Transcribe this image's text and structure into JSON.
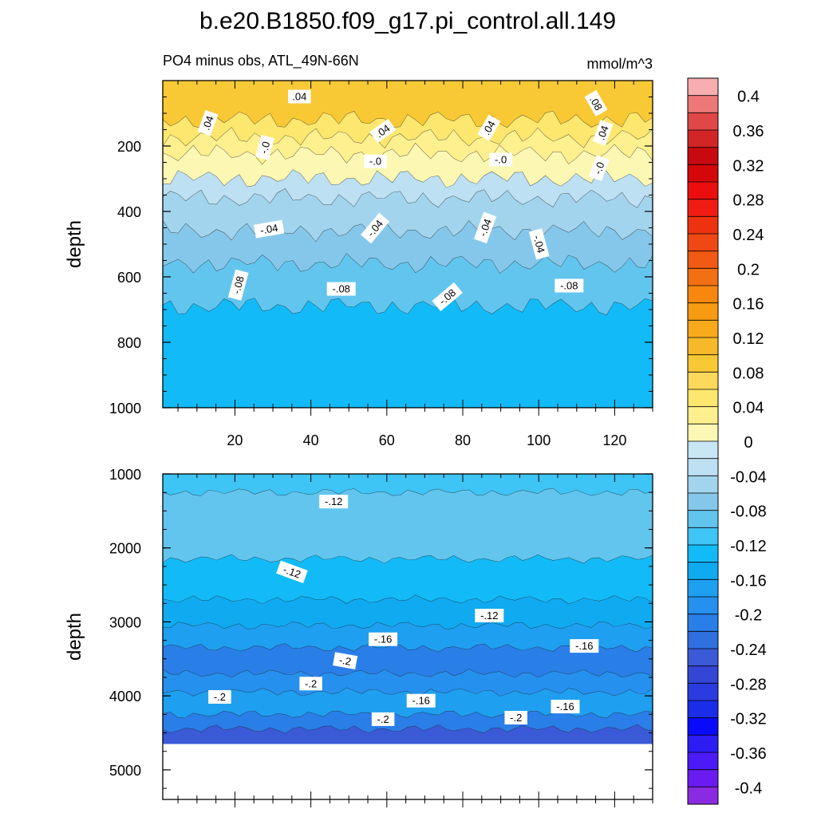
{
  "chart_data": {
    "title": "b.e20.B1850.f09_g17.pi_control.all.149",
    "type": "contour",
    "units": "mmol/m^3",
    "colorbar": {
      "levels": [
        -0.42,
        -0.4,
        -0.38,
        -0.36,
        -0.34,
        -0.32,
        -0.3,
        -0.28,
        -0.26,
        -0.24,
        -0.22,
        -0.2,
        -0.18,
        -0.16,
        -0.14,
        -0.12,
        -0.1,
        -0.08,
        -0.06,
        -0.04,
        -0.02,
        0,
        0.02,
        0.04,
        0.06,
        0.08,
        0.1,
        0.12,
        0.14,
        0.16,
        0.18,
        0.2,
        0.22,
        0.24,
        0.26,
        0.28,
        0.3,
        0.32,
        0.34,
        0.36,
        0.38,
        0.4,
        0.42
      ],
      "colors": [
        "#8a2be2",
        "#6a1cf0",
        "#4b1af5",
        "#2e1cf5",
        "#0a0afa",
        "#1a2de8",
        "#2a3ce0",
        "#3346d6",
        "#3a5ad8",
        "#2f6fe0",
        "#2a7ee8",
        "#2690ee",
        "#1f9ff0",
        "#10aaf0",
        "#12bbf8",
        "#3ec4f5",
        "#62c5ee",
        "#85c7ea",
        "#a3d4ed",
        "#bde0f2",
        "#c8e6f3",
        "#fcf8b4",
        "#fef08e",
        "#fee76e",
        "#fcd95c",
        "#f9c935",
        "#f7b92a",
        "#f8aa1c",
        "#f79b12",
        "#f7870f",
        "#f26f14",
        "#f05a14",
        "#f04814",
        "#ee3210",
        "#f01c14",
        "#ea0e0e",
        "#d40808",
        "#c80a10",
        "#d22626",
        "#e04848",
        "#ee7878",
        "#f8aeb0"
      ],
      "tick_labels": [
        "0.4",
        "0.36",
        "0.32",
        "0.28",
        "0.24",
        "0.2",
        "0.16",
        "0.12",
        "0.08",
        "0.04",
        "0",
        "-0.04",
        "-0.08",
        "-0.12",
        "-0.16",
        "-0.2",
        "-0.24",
        "-0.28",
        "-0.32",
        "-0.36",
        "-0.4"
      ]
    },
    "panels": [
      {
        "subtitle_left": "PO4 minus obs, ATL_49N-66N",
        "subtitle_right": "mmol/m^3",
        "ylabel": "depth",
        "xlim": [
          1,
          130
        ],
        "ylim": [
          0,
          1000
        ],
        "xticks": [
          20,
          40,
          60,
          80,
          100,
          120
        ],
        "xtick_labels": [
          "20",
          "40",
          "60",
          "80",
          "100",
          "120"
        ],
        "yticks": [
          200,
          400,
          600,
          800,
          1000
        ],
        "ytick_labels": [
          "200",
          "400",
          "600",
          "800",
          "1000"
        ],
        "bands": [
          {
            "bottom": 120,
            "value": 0.08
          },
          {
            "bottom": 175,
            "value": 0.04
          },
          {
            "bottom": 225,
            "value": 0.02
          },
          {
            "bottom": 300,
            "value": 0.01
          },
          {
            "bottom": 360,
            "value": -0.03
          },
          {
            "bottom": 460,
            "value": -0.05
          },
          {
            "bottom": 560,
            "value": -0.07
          },
          {
            "bottom": 690,
            "value": -0.09
          },
          {
            "bottom": 1000,
            "value": -0.13
          }
        ],
        "contour_labels": [
          {
            "text": ".04",
            "x": 37,
            "y": 50,
            "rot": 0
          },
          {
            "text": ".04",
            "x": 13,
            "y": 130,
            "rot": -70
          },
          {
            "text": ".04",
            "x": 59,
            "y": 155,
            "rot": -35
          },
          {
            "text": ".04",
            "x": 87,
            "y": 145,
            "rot": -60
          },
          {
            "text": ".08",
            "x": 115,
            "y": 70,
            "rot": 60
          },
          {
            "text": ".04",
            "x": 117,
            "y": 160,
            "rot": -70
          },
          {
            "text": "-.0",
            "x": 28,
            "y": 205,
            "rot": -75
          },
          {
            "text": "-.0",
            "x": 57,
            "y": 248,
            "rot": 0
          },
          {
            "text": "-.0",
            "x": 90,
            "y": 243,
            "rot": 0
          },
          {
            "text": "-.0",
            "x": 116,
            "y": 268,
            "rot": -70
          },
          {
            "text": "-.04",
            "x": 29,
            "y": 455,
            "rot": -10
          },
          {
            "text": "-.04",
            "x": 57,
            "y": 452,
            "rot": -50
          },
          {
            "text": "-.04",
            "x": 86,
            "y": 450,
            "rot": -70
          },
          {
            "text": "-.04",
            "x": 100,
            "y": 500,
            "rot": 75
          },
          {
            "text": "-.08",
            "x": 21,
            "y": 625,
            "rot": -75
          },
          {
            "text": "-.08",
            "x": 48,
            "y": 638,
            "rot": 0
          },
          {
            "text": "-.08",
            "x": 76,
            "y": 662,
            "rot": -40
          },
          {
            "text": "-.08",
            "x": 108,
            "y": 628,
            "rot": 0
          }
        ]
      },
      {
        "ylabel": "depth",
        "xlim": [
          1,
          130
        ],
        "ylim": [
          1000,
          5400
        ],
        "yticks": [
          1000,
          2000,
          3000,
          4000,
          5000
        ],
        "ytick_labels": [
          "1000",
          "2000",
          "3000",
          "4000",
          "5000"
        ],
        "data_floor": 4650,
        "bands": [
          {
            "bottom": 1250,
            "value": -0.11
          },
          {
            "bottom": 2150,
            "value": -0.09
          },
          {
            "bottom": 2700,
            "value": -0.13
          },
          {
            "bottom": 3050,
            "value": -0.15
          },
          {
            "bottom": 3350,
            "value": -0.17
          },
          {
            "bottom": 3700,
            "value": -0.21
          },
          {
            "bottom": 3950,
            "value": -0.19
          },
          {
            "bottom": 4250,
            "value": -0.17
          },
          {
            "bottom": 4450,
            "value": -0.21
          },
          {
            "bottom": 4650,
            "value": -0.25
          }
        ],
        "contour_labels": [
          {
            "text": "-.12",
            "x": 46,
            "y": 1380,
            "rot": 0
          },
          {
            "text": "-.12",
            "x": 35,
            "y": 2330,
            "rot": 20
          },
          {
            "text": "-.12",
            "x": 87,
            "y": 2920,
            "rot": 0
          },
          {
            "text": "-.16",
            "x": 59,
            "y": 3240,
            "rot": 0
          },
          {
            "text": "-.16",
            "x": 112,
            "y": 3330,
            "rot": 0
          },
          {
            "text": "-.2",
            "x": 49,
            "y": 3530,
            "rot": 10
          },
          {
            "text": "-.2",
            "x": 40,
            "y": 3840,
            "rot": 0
          },
          {
            "text": "-.2",
            "x": 16,
            "y": 4020,
            "rot": 0
          },
          {
            "text": "-.16",
            "x": 69,
            "y": 4070,
            "rot": 0
          },
          {
            "text": "-.16",
            "x": 107,
            "y": 4150,
            "rot": 0
          },
          {
            "text": "-.2",
            "x": 59,
            "y": 4320,
            "rot": 0
          },
          {
            "text": "-.2",
            "x": 94,
            "y": 4300,
            "rot": 0
          }
        ]
      }
    ]
  }
}
